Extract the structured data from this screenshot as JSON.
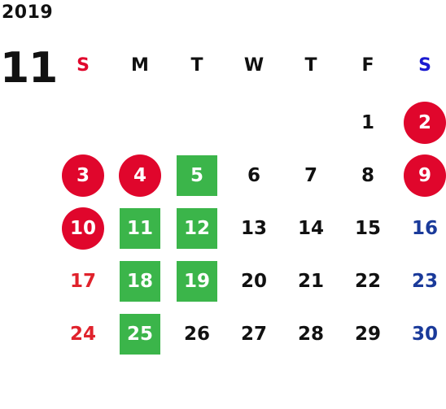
{
  "calendar": {
    "year": "2019",
    "month": "11",
    "colors": {
      "text": "#111111",
      "sunday": "#e0222c",
      "saturday": "#1a3a9a",
      "holiday_circle": "#e0062c",
      "highlight_green": "#3bb54a"
    },
    "weekdays": [
      {
        "label": "S",
        "kind": "sunday"
      },
      {
        "label": "M",
        "kind": "weekday"
      },
      {
        "label": "T",
        "kind": "weekday"
      },
      {
        "label": "W",
        "kind": "weekday"
      },
      {
        "label": "T",
        "kind": "weekday"
      },
      {
        "label": "F",
        "kind": "weekday"
      },
      {
        "label": "S",
        "kind": "saturday"
      }
    ],
    "weeks": [
      [
        null,
        null,
        null,
        null,
        null,
        {
          "day": "1",
          "style": "plain"
        },
        {
          "day": "2",
          "style": "circle"
        }
      ],
      [
        {
          "day": "3",
          "style": "circle"
        },
        {
          "day": "4",
          "style": "circle"
        },
        {
          "day": "5",
          "style": "green"
        },
        {
          "day": "6",
          "style": "plain"
        },
        {
          "day": "7",
          "style": "plain"
        },
        {
          "day": "8",
          "style": "plain"
        },
        {
          "day": "9",
          "style": "circle"
        }
      ],
      [
        {
          "day": "10",
          "style": "circle"
        },
        {
          "day": "11",
          "style": "green"
        },
        {
          "day": "12",
          "style": "green"
        },
        {
          "day": "13",
          "style": "plain"
        },
        {
          "day": "14",
          "style": "plain"
        },
        {
          "day": "15",
          "style": "plain"
        },
        {
          "day": "16",
          "style": "plain"
        }
      ],
      [
        {
          "day": "17",
          "style": "plain"
        },
        {
          "day": "18",
          "style": "green"
        },
        {
          "day": "19",
          "style": "green"
        },
        {
          "day": "20",
          "style": "plain"
        },
        {
          "day": "21",
          "style": "plain"
        },
        {
          "day": "22",
          "style": "plain"
        },
        {
          "day": "23",
          "style": "plain"
        }
      ],
      [
        {
          "day": "24",
          "style": "plain"
        },
        {
          "day": "25",
          "style": "green"
        },
        {
          "day": "26",
          "style": "plain"
        },
        {
          "day": "27",
          "style": "plain"
        },
        {
          "day": "28",
          "style": "plain"
        },
        {
          "day": "29",
          "style": "plain"
        },
        {
          "day": "30",
          "style": "plain"
        }
      ]
    ]
  }
}
